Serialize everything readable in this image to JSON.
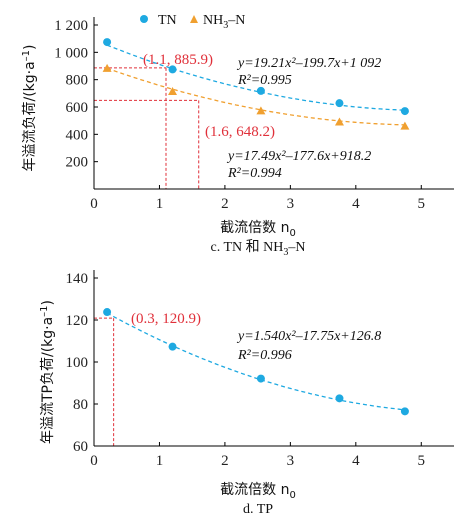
{
  "chart_data": [
    {
      "type": "scatter",
      "caption": "c. TN 和 NH",
      "caption_sub": "3",
      "caption_tail": "–N",
      "xlabel": "截流倍数 n",
      "xlabel_sub": "0",
      "ylabel": "年溢流负荷/(kg·a",
      "ylabel_sup": "–1",
      "ylabel_tail": ")",
      "xlim": [
        0,
        5.5
      ],
      "ylim": [
        0,
        1200
      ],
      "xticks": [
        0,
        1,
        2,
        3,
        4,
        5
      ],
      "yticks": [
        200,
        400,
        600,
        800,
        1000,
        1200
      ],
      "ytick_labels": [
        "200",
        "400",
        "600",
        "800",
        "1 000",
        "1 200"
      ],
      "series": [
        {
          "name": "TN",
          "marker": "circle",
          "color": "#1ea9e1",
          "x": [
            0.2,
            1.2,
            2.55,
            3.75,
            4.75
          ],
          "y": [
            1075,
            875,
            718,
            628,
            570
          ],
          "fit": [
            19.21,
            -199.7,
            1092
          ],
          "equation": "y=19.21x²–199.7x+1 092",
          "r2": "R²=0.995"
        },
        {
          "name": "NH3–N",
          "marker": "triangle",
          "color": "#f0a030",
          "x": [
            0.2,
            1.2,
            2.55,
            3.75,
            4.75
          ],
          "y": [
            883,
            713,
            572,
            490,
            460
          ],
          "fit": [
            17.49,
            -177.6,
            918.2
          ],
          "equation": "y=17.49x²–177.6x+918.2",
          "r2": "R²=0.994"
        }
      ],
      "annotations": [
        {
          "x": 1.1,
          "y": 885.9,
          "label": "(1.1, 885.9)"
        },
        {
          "x": 1.6,
          "y": 648.2,
          "label": "(1.6, 648.2)"
        }
      ]
    },
    {
      "type": "scatter",
      "caption": "d. TP",
      "xlabel": "截流倍数 n",
      "xlabel_sub": "0",
      "ylabel": "年溢流TP负荷/(kg·a",
      "ylabel_sup": "–1",
      "ylabel_tail": ")",
      "xlim": [
        0,
        5.5
      ],
      "ylim": [
        60,
        140
      ],
      "xticks": [
        0,
        1,
        2,
        3,
        4,
        5
      ],
      "yticks": [
        60,
        80,
        100,
        120,
        140
      ],
      "ytick_labels": [
        "60",
        "80",
        "100",
        "120",
        "140"
      ],
      "series": [
        {
          "name": "TP",
          "marker": "circle",
          "color": "#1ea9e1",
          "x": [
            0.2,
            1.2,
            2.55,
            3.75,
            4.75
          ],
          "y": [
            123.8,
            107.3,
            92.1,
            82.7,
            76.5
          ],
          "fit": [
            1.54,
            -17.75,
            126.8
          ],
          "equation": "y=1.540x²–17.75x+126.8",
          "r2": "R²=0.996"
        }
      ],
      "annotations": [
        {
          "x": 0.3,
          "y": 120.9,
          "label": "(0.3, 120.9)"
        }
      ]
    }
  ]
}
